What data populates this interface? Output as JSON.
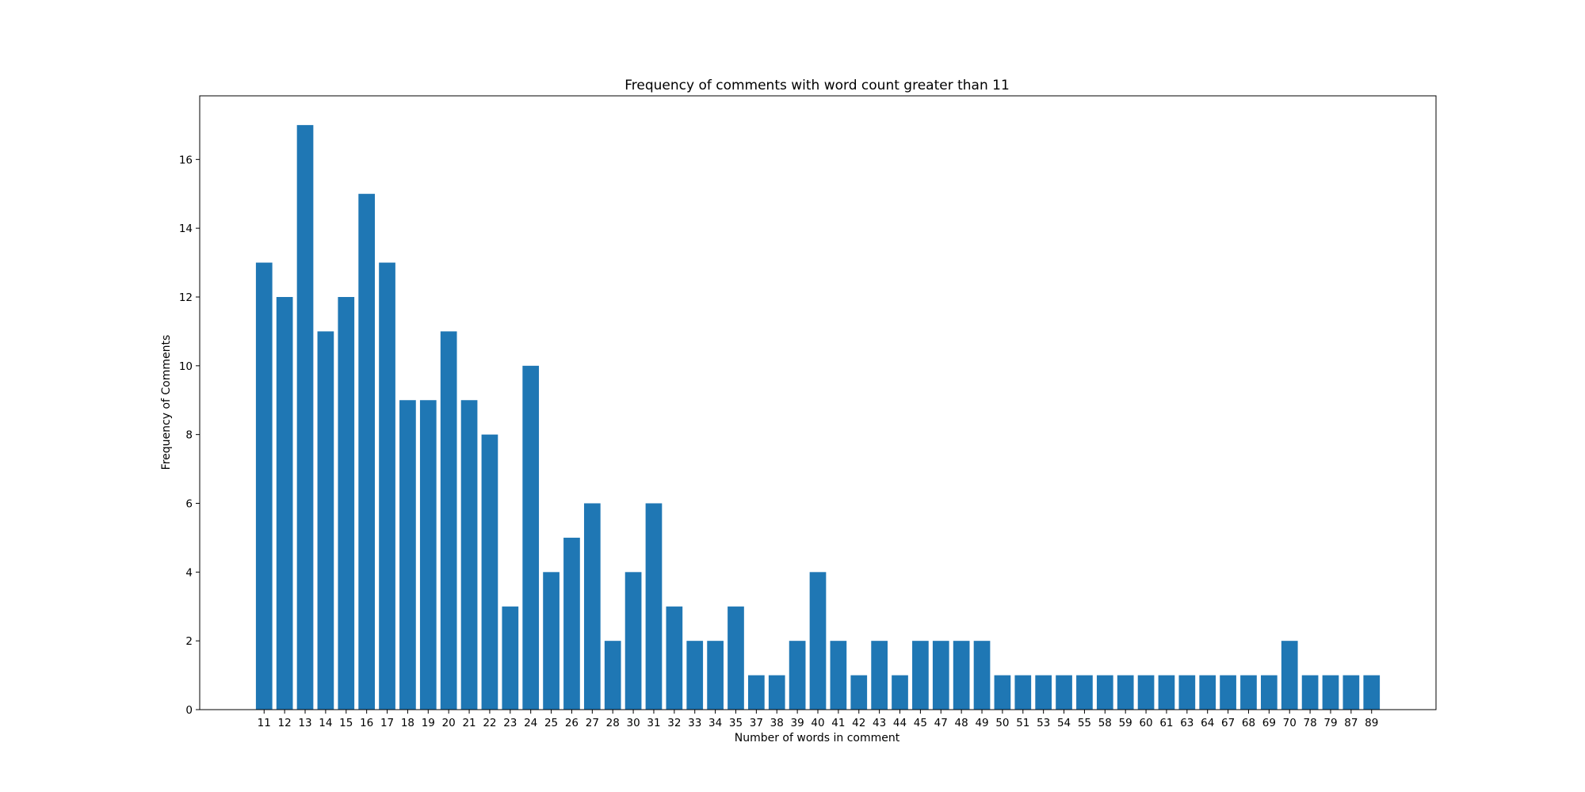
{
  "chart_data": {
    "type": "bar",
    "title": "Frequency of comments with word count greater than 11",
    "xlabel": "Number of words in comment",
    "ylabel": "Frequency of Comments",
    "categories": [
      "11",
      "12",
      "13",
      "14",
      "15",
      "16",
      "17",
      "18",
      "19",
      "20",
      "21",
      "22",
      "23",
      "24",
      "25",
      "26",
      "27",
      "28",
      "30",
      "31",
      "32",
      "33",
      "34",
      "35",
      "37",
      "38",
      "39",
      "40",
      "41",
      "42",
      "43",
      "44",
      "45",
      "47",
      "48",
      "49",
      "50",
      "51",
      "53",
      "54",
      "55",
      "58",
      "59",
      "60",
      "61",
      "63",
      "64",
      "67",
      "68",
      "69",
      "70",
      "78",
      "79",
      "87",
      "89"
    ],
    "values": [
      13,
      12,
      17,
      11,
      12,
      15,
      13,
      9,
      9,
      11,
      9,
      8,
      3,
      10,
      4,
      5,
      6,
      2,
      4,
      6,
      3,
      2,
      2,
      3,
      1,
      1,
      2,
      4,
      2,
      1,
      2,
      1,
      2,
      2,
      2,
      2,
      1,
      1,
      1,
      1,
      1,
      1,
      1,
      1,
      1,
      1,
      1,
      1,
      1,
      1,
      2,
      1,
      1,
      1,
      1
    ],
    "ylim": [
      0,
      17.85
    ],
    "yticks": [
      0,
      2,
      4,
      6,
      8,
      10,
      12,
      14,
      16
    ],
    "grid": false,
    "bar_color": "#1f77b4"
  }
}
